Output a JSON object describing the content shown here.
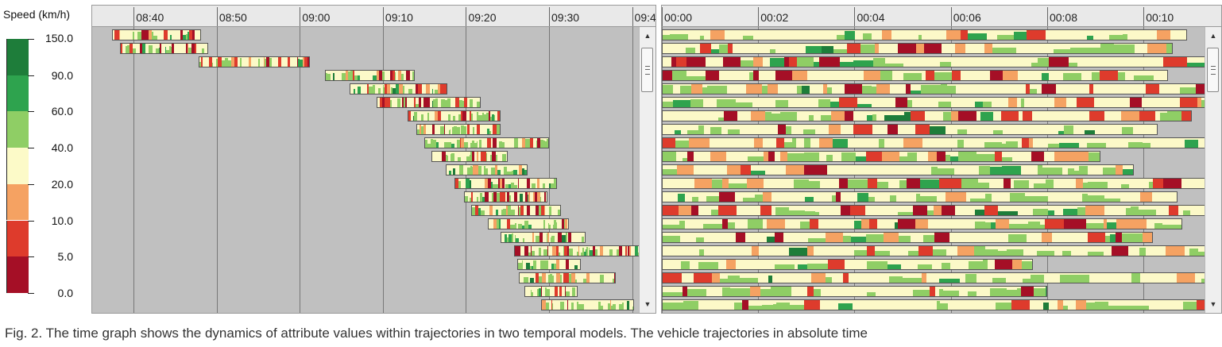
{
  "legend": {
    "title": "Speed (km/h)",
    "colors": [
      "#2b9a4a",
      "#1e7d3a",
      "#2ea34e",
      "#8fce65",
      "#fcfac8",
      "#f5a262",
      "#de3b2c",
      "#a50f26"
    ],
    "labels": [
      "150.0",
      "90.0",
      "60.0",
      "40.0",
      "20.0",
      "10.0",
      "5.0",
      "0.0"
    ],
    "bands": [
      {
        "color": "#1e7d3a",
        "range": "90.0–150.0"
      },
      {
        "color": "#2ea34e",
        "range": "60.0–90.0"
      },
      {
        "color": "#8fce65",
        "range": "40.0–60.0"
      },
      {
        "color": "#fcfac8",
        "range": "20.0–40.0"
      },
      {
        "color": "#f5a262",
        "range": "10.0–20.0"
      },
      {
        "color": "#de3b2c",
        "range": "5.0–10.0"
      },
      {
        "color": "#a50f26",
        "range": "0.0–5.0"
      }
    ]
  },
  "left_axis_labels": [
    "08:40",
    "08:50",
    "09:00",
    "09:10",
    "09:20",
    "09:30",
    "09:40"
  ],
  "right_axis_labels": [
    "00:00",
    "00:02",
    "00:04",
    "00:06",
    "00:08",
    "00:10"
  ],
  "caption": "Fig. 2. The time graph shows the dynamics of attribute values within trajectories in two temporal models. The vehicle trajectories in absolute time",
  "chart_data": [
    {
      "type": "heatmap",
      "name": "absolute-time",
      "x_unit": "clock time",
      "xlim": [
        "08:35",
        "09:41"
      ],
      "tick_labels": [
        "08:40",
        "08:50",
        "09:00",
        "09:10",
        "09:20",
        "09:30",
        "09:40"
      ],
      "rows": [
        {
          "start": "08:37.4",
          "end": "08:48.1"
        },
        {
          "start": "08:38.3",
          "end": "08:49.0"
        },
        {
          "start": "08:47.8",
          "end": "09:01.2"
        },
        {
          "start": "09:03.0",
          "end": "09:13.8"
        },
        {
          "start": "09:06.0",
          "end": "09:17.8"
        },
        {
          "start": "09:09.2",
          "end": "09:21.8"
        },
        {
          "start": "09:13.0",
          "end": "09:24.2"
        },
        {
          "start": "09:14.0",
          "end": "09:24.2"
        },
        {
          "start": "09:15.0",
          "end": "09:30.0"
        },
        {
          "start": "09:15.8",
          "end": "09:25.0"
        },
        {
          "start": "09:17.6",
          "end": "09:27.4"
        },
        {
          "start": "09:18.6",
          "end": "09:31.0"
        },
        {
          "start": "09:19.8",
          "end": "09:29.8"
        },
        {
          "start": "09:20.6",
          "end": "09:31.4"
        },
        {
          "start": "09:22.6",
          "end": "09:32.4"
        },
        {
          "start": "09:24.2",
          "end": "09:34.4"
        },
        {
          "start": "09:25.8",
          "end": "09:43.6"
        },
        {
          "start": "09:26.2",
          "end": "09:33.8"
        },
        {
          "start": "09:26.4",
          "end": "09:38.0"
        },
        {
          "start": "09:27.0",
          "end": "09:33.4"
        },
        {
          "start": "09:29.0",
          "end": "09:40.2"
        }
      ]
    },
    {
      "type": "heatmap",
      "name": "relative-time",
      "x_unit": "elapsed time (mm:ss)",
      "xlim": [
        0,
        11.3
      ],
      "tick_labels": [
        "00:00",
        "00:02",
        "00:04",
        "00:06",
        "00:08",
        "00:10"
      ],
      "rows": [
        {
          "start": 0,
          "end": 10.9
        },
        {
          "start": 0,
          "end": 10.6
        },
        {
          "start": 0,
          "end": 11.3
        },
        {
          "start": 0,
          "end": 10.5
        },
        {
          "start": 0,
          "end": 11.3
        },
        {
          "start": 0,
          "end": 11.3
        },
        {
          "start": 0,
          "end": 11.0
        },
        {
          "start": 0,
          "end": 10.3
        },
        {
          "start": 0,
          "end": 11.3
        },
        {
          "start": 0,
          "end": 9.1
        },
        {
          "start": 0,
          "end": 9.8
        },
        {
          "start": 0,
          "end": 11.3
        },
        {
          "start": 0,
          "end": 10.7
        },
        {
          "start": 0,
          "end": 11.3
        },
        {
          "start": 0,
          "end": 10.8
        },
        {
          "start": 0,
          "end": 10.2
        },
        {
          "start": 0,
          "end": 11.3
        },
        {
          "start": 0,
          "end": 7.7
        },
        {
          "start": 0,
          "end": 11.3
        },
        {
          "start": 0,
          "end": 8.0
        },
        {
          "start": 0,
          "end": 11.3
        }
      ]
    }
  ]
}
